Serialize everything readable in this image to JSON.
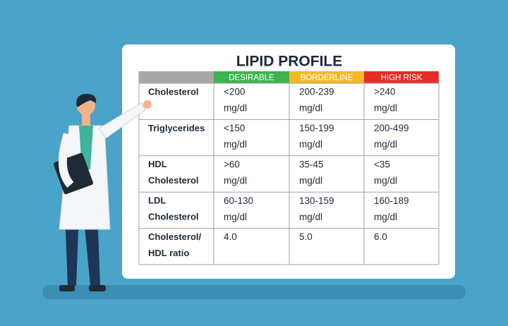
{
  "title": "LIPID PROFILE",
  "table": {
    "header": [
      {
        "text": "DESIRABLE",
        "color": "#3fb34f"
      },
      {
        "text": "BORDERLINE",
        "color": "#f5b921"
      },
      {
        "text": "HIGH RISK",
        "color": "#e52d27"
      }
    ],
    "rows": [
      {
        "label": [
          "Cholesterol"
        ],
        "cells": [
          [
            "<200",
            "mg/dl"
          ],
          [
            "200-239",
            "mg/dl"
          ],
          [
            ">240",
            "mg/dl"
          ]
        ]
      },
      {
        "label": [
          "Triglycerides"
        ],
        "cells": [
          [
            "<150",
            "mg/dl"
          ],
          [
            "150-199",
            "mg/dl"
          ],
          [
            "200-499",
            "mg/dl"
          ]
        ]
      },
      {
        "label": [
          "HDL",
          "Cholesterol"
        ],
        "cells": [
          [
            ">60",
            "mg/dl"
          ],
          [
            "35-45",
            "mg/dl"
          ],
          [
            "<35",
            "mg/dl"
          ]
        ]
      },
      {
        "label": [
          "LDL",
          "Cholesterol"
        ],
        "cells": [
          [
            "60-130",
            "mg/dl"
          ],
          [
            "130-159",
            "mg/dl"
          ],
          [
            "160-189",
            "mg/dl"
          ]
        ]
      },
      {
        "label": [
          "Cholesterol/",
          "HDL ratio"
        ],
        "cells": [
          [
            "4.0"
          ],
          [
            "5.0"
          ],
          [
            "6.0"
          ]
        ]
      }
    ]
  }
}
